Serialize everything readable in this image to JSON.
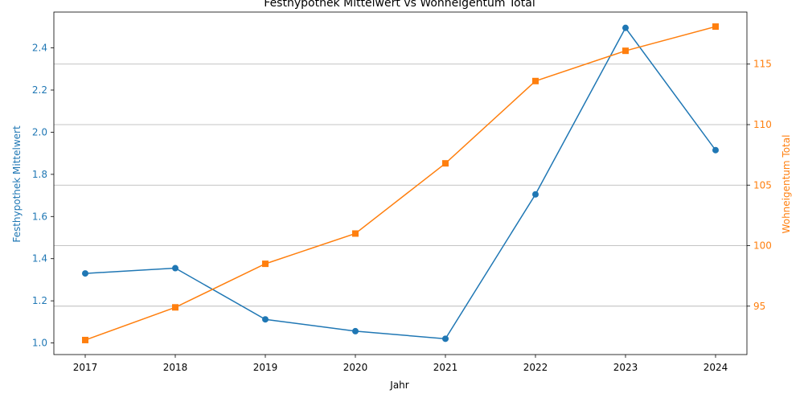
{
  "chart_data": {
    "type": "line",
    "title": "Festhypothek Mittelwert vs Wohneigentum Total",
    "xlabel": "Jahr",
    "x": [
      "2017",
      "2018",
      "2019",
      "2020",
      "2021",
      "2022",
      "2023",
      "2024"
    ],
    "y_left": {
      "label": "Festhypothek Mittelwert",
      "color": "#1f77b4",
      "marker": "circle",
      "values": [
        1.33,
        1.355,
        1.112,
        1.056,
        1.02,
        1.705,
        2.495,
        1.915
      ],
      "ylim": [
        0.945,
        2.57
      ],
      "ticks": [
        "1.0",
        "1.2",
        "1.4",
        "1.6",
        "1.8",
        "2.0",
        "2.2",
        "2.4"
      ],
      "tick_values": [
        1.0,
        1.2,
        1.4,
        1.6,
        1.8,
        2.0,
        2.2,
        2.4
      ]
    },
    "y_right": {
      "label": "Wohneigentum Total",
      "color": "#ff7f0e",
      "marker": "square",
      "values": [
        92.2,
        94.9,
        98.5,
        101.0,
        106.8,
        113.6,
        116.1,
        118.1
      ],
      "ylim": [
        91.0,
        119.3
      ],
      "ticks": [
        "95",
        "100",
        "105",
        "110",
        "115"
      ],
      "tick_values": [
        95,
        100,
        105,
        110,
        115
      ]
    },
    "grid": "horizontal lines at right-axis ticks"
  }
}
